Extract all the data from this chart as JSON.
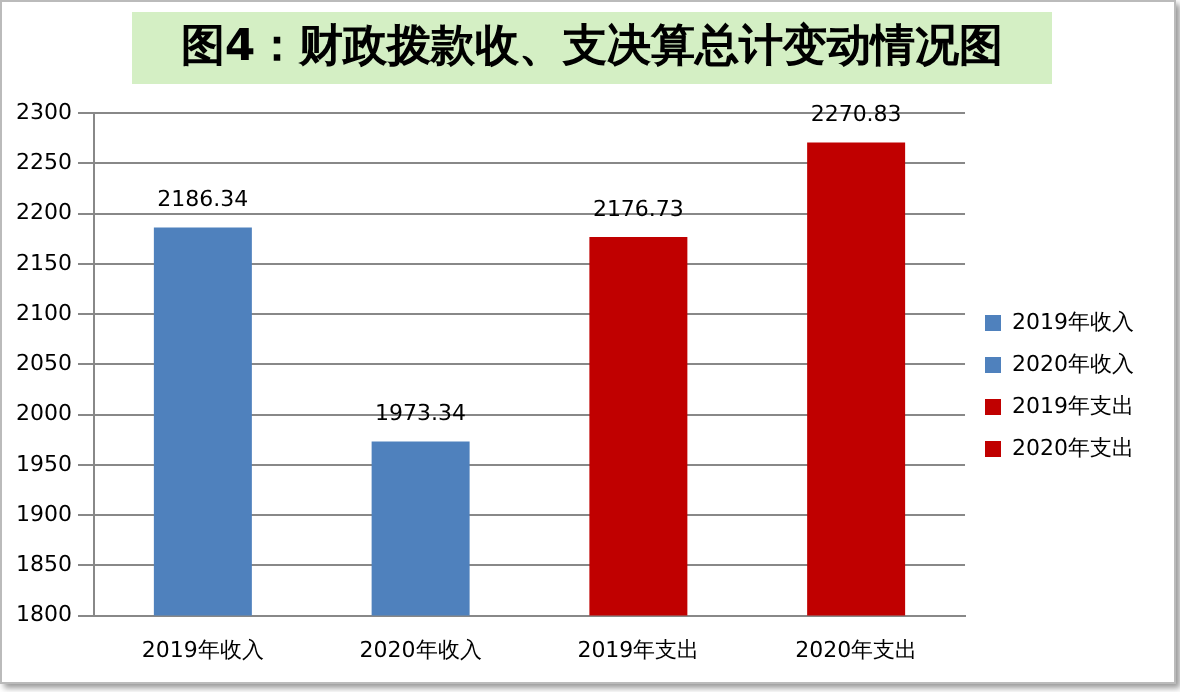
{
  "chart_data": {
    "type": "bar",
    "title": "图4：财政拨款收、支决算总计变动情况图",
    "categories": [
      "2019年收入",
      "2020年收入",
      "2019年支出",
      "2020年支出"
    ],
    "series": [
      {
        "name": "2019年收入",
        "color": "#4f81bd",
        "values": [
          2186.34,
          null,
          null,
          null
        ]
      },
      {
        "name": "2020年收入",
        "color": "#4f81bd",
        "values": [
          null,
          1973.34,
          null,
          null
        ]
      },
      {
        "name": "2019年支出",
        "color": "#c00000",
        "values": [
          null,
          null,
          2176.73,
          null
        ]
      },
      {
        "name": "2020年支出",
        "color": "#c00000",
        "values": [
          null,
          null,
          null,
          2270.83
        ]
      }
    ],
    "ylim": [
      1800,
      2300
    ],
    "yticks": [
      1800,
      1850,
      1900,
      1950,
      2000,
      2050,
      2100,
      2150,
      2200,
      2250,
      2300
    ],
    "grid": "y",
    "legend": "right",
    "data_labels": true
  }
}
